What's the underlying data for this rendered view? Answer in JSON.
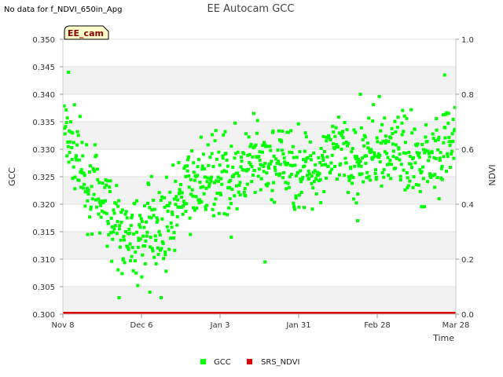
{
  "notice": "No data for f_NDVI_650in_Apg",
  "chart_data": {
    "type": "scatter",
    "title": "EE Autocam GCC",
    "badge": "EE_cam",
    "xlabel": "Time",
    "ylabel_left": "GCC",
    "ylabel_right": "NDVI",
    "x_ticks": [
      {
        "day": 0,
        "label": "Nov 8"
      },
      {
        "day": 28,
        "label": "Dec 6"
      },
      {
        "day": 56,
        "label": "Jan 3"
      },
      {
        "day": 84,
        "label": "Jan 31"
      },
      {
        "day": 112,
        "label": "Feb 28"
      },
      {
        "day": 140,
        "label": "Mar 28"
      }
    ],
    "xlim": [
      0,
      140
    ],
    "ylim_left": [
      0.3,
      0.35
    ],
    "y_ticks_left": [
      "0.300",
      "0.305",
      "0.310",
      "0.315",
      "0.320",
      "0.325",
      "0.330",
      "0.335",
      "0.340",
      "0.345",
      "0.350"
    ],
    "ylim_right": [
      0.0,
      1.0
    ],
    "y_ticks_right": [
      "0.0",
      "0.2",
      "0.4",
      "0.6",
      "0.8",
      "1.0"
    ],
    "legend": [
      {
        "name": "GCC",
        "color": "#00ff00"
      },
      {
        "name": "SRS_NDVI",
        "color": "#dd0000"
      }
    ],
    "series": [
      {
        "name": "GCC",
        "color": "#00ff00",
        "trend": [
          {
            "day": 0,
            "value": 0.336
          },
          {
            "day": 4,
            "value": 0.33
          },
          {
            "day": 8,
            "value": 0.324
          },
          {
            "day": 12,
            "value": 0.322
          },
          {
            "day": 16,
            "value": 0.32
          },
          {
            "day": 20,
            "value": 0.315
          },
          {
            "day": 24,
            "value": 0.313
          },
          {
            "day": 28,
            "value": 0.314
          },
          {
            "day": 32,
            "value": 0.317
          },
          {
            "day": 36,
            "value": 0.316
          },
          {
            "day": 40,
            "value": 0.319
          },
          {
            "day": 44,
            "value": 0.322
          },
          {
            "day": 48,
            "value": 0.324
          },
          {
            "day": 56,
            "value": 0.325
          },
          {
            "day": 64,
            "value": 0.326
          },
          {
            "day": 72,
            "value": 0.327
          },
          {
            "day": 80,
            "value": 0.327
          },
          {
            "day": 88,
            "value": 0.326
          },
          {
            "day": 96,
            "value": 0.329
          },
          {
            "day": 104,
            "value": 0.328
          },
          {
            "day": 112,
            "value": 0.33
          },
          {
            "day": 120,
            "value": 0.33
          },
          {
            "day": 128,
            "value": 0.328
          },
          {
            "day": 134,
            "value": 0.33
          },
          {
            "day": 140,
            "value": 0.332
          }
        ],
        "spread": 0.0035,
        "points_per_day": 6,
        "outliers": [
          {
            "day": 2,
            "value": 0.344
          },
          {
            "day": 20,
            "value": 0.303
          },
          {
            "day": 31,
            "value": 0.304
          },
          {
            "day": 35,
            "value": 0.303
          },
          {
            "day": 60,
            "value": 0.314
          },
          {
            "day": 68,
            "value": 0.3365
          },
          {
            "day": 72,
            "value": 0.3095
          },
          {
            "day": 105,
            "value": 0.317
          },
          {
            "day": 106,
            "value": 0.34
          },
          {
            "day": 136,
            "value": 0.3435
          }
        ]
      },
      {
        "name": "SRS_NDVI",
        "color": "#dd0000",
        "axis": "right",
        "value": 0.0
      }
    ]
  }
}
